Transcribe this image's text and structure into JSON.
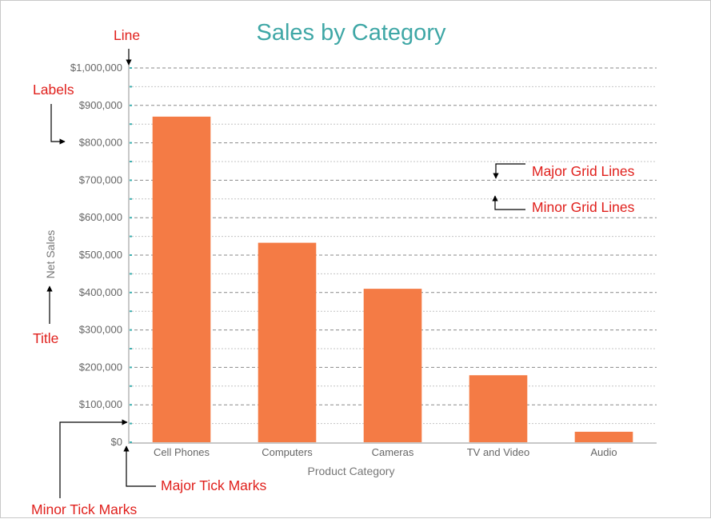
{
  "colors": {
    "bar": "#f47b45",
    "title": "#3fa7a6",
    "tick_mark": "#3fb0b0",
    "annotation": "#e0201c",
    "grid": "#999999",
    "axis": "#c8c8c8"
  },
  "chart_data": {
    "type": "bar",
    "title": "Sales by Category",
    "xlabel": "Product Category",
    "ylabel": "Net Sales",
    "categories": [
      "Cell Phones",
      "Computers",
      "Cameras",
      "TV and Video",
      "Audio"
    ],
    "values": [
      870000,
      533000,
      410000,
      179000,
      28000
    ],
    "ylim": [
      0,
      1000000
    ],
    "y_major_step": 100000,
    "y_minor_step": 50000,
    "y_tick_labels": [
      "$0",
      "$100,000",
      "$200,000",
      "$300,000",
      "$400,000",
      "$500,000",
      "$600,000",
      "$700,000",
      "$800,000",
      "$900,000",
      "$1,000,000"
    ],
    "grid": true,
    "legend": "none"
  },
  "annotations": {
    "line": "Line",
    "labels": "Labels",
    "title": "Title",
    "major_grid_lines": "Major Grid Lines",
    "minor_grid_lines": "Minor Grid Lines",
    "major_tick_marks": "Major Tick Marks",
    "minor_tick_marks": "Minor Tick Marks"
  }
}
